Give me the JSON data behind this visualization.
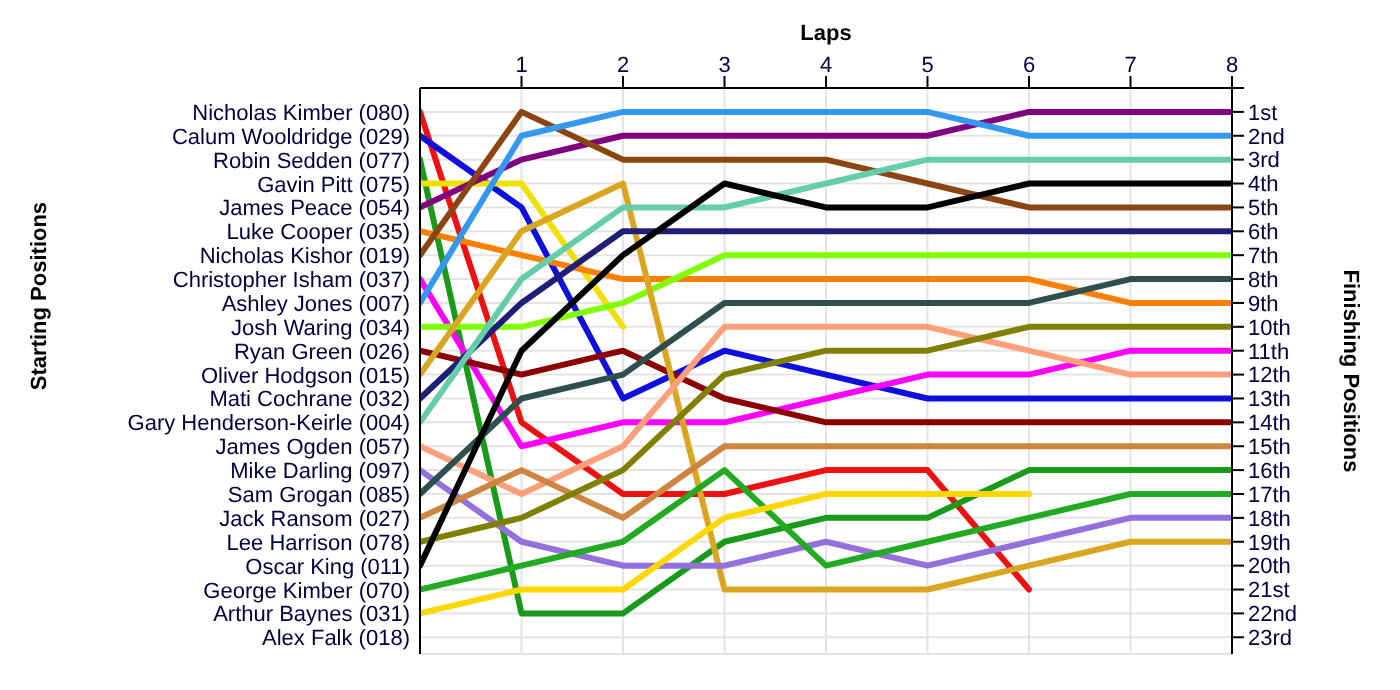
{
  "chart_data": {
    "type": "line",
    "xlabel": "Laps",
    "legend_title": "Starting Positions",
    "ylabel": "Finishing Positions",
    "x": [
      0,
      1,
      2,
      3,
      4,
      5,
      6,
      7,
      8
    ],
    "xlim": [
      0,
      8
    ],
    "xticks": [
      1,
      2,
      3,
      4,
      5,
      6,
      7,
      8
    ],
    "ylim": [
      23.7,
      0
    ],
    "grid": true,
    "line_style": "solid",
    "yticks": [
      {
        "value": 0,
        "label": null
      },
      {
        "value": 1,
        "label": "1st"
      },
      {
        "value": 2,
        "label": "2nd"
      },
      {
        "value": 3,
        "label": "3rd"
      },
      {
        "value": 4,
        "label": "4th"
      },
      {
        "value": 5,
        "label": "5th"
      },
      {
        "value": 6,
        "label": "6th"
      },
      {
        "value": 7,
        "label": "7th"
      },
      {
        "value": 8,
        "label": "8th"
      },
      {
        "value": 9,
        "label": "9th"
      },
      {
        "value": 10,
        "label": "10th"
      },
      {
        "value": 11,
        "label": "11th"
      },
      {
        "value": 12,
        "label": "12th"
      },
      {
        "value": 13,
        "label": "13th"
      },
      {
        "value": 14,
        "label": "14th"
      },
      {
        "value": 15,
        "label": "15th"
      },
      {
        "value": 16,
        "label": "16th"
      },
      {
        "value": 17,
        "label": "17th"
      },
      {
        "value": 18,
        "label": "18th"
      },
      {
        "value": 19,
        "label": "19th"
      },
      {
        "value": 20,
        "label": "20th"
      },
      {
        "value": 21,
        "label": "21st"
      },
      {
        "value": 22,
        "label": "22nd"
      },
      {
        "value": 23,
        "label": "23rd"
      }
    ],
    "annotations": [
      "Alex Falk (018)"
    ],
    "series": [
      {
        "name": "Nicholas Kimber (080)",
        "color": "#ee1111",
        "values": [
          1,
          14,
          17,
          17,
          16,
          16,
          21,
          null,
          null
        ]
      },
      {
        "name": "Calum Wooldridge (029)",
        "color": "#1010dd",
        "values": [
          2,
          5,
          13,
          11,
          12,
          13,
          13,
          13,
          13
        ]
      },
      {
        "name": "Robin Sedden (077)",
        "color": "#1a9a1a",
        "values": [
          3,
          22,
          22,
          19,
          18,
          18,
          16,
          16,
          16
        ]
      },
      {
        "name": "Gavin Pitt (075)",
        "color": "#f0e000",
        "values": [
          4,
          4,
          10,
          null,
          null,
          null,
          null,
          null,
          null
        ]
      },
      {
        "name": "James Peace (054)",
        "color": "#800080",
        "values": [
          5,
          3,
          2,
          2,
          2,
          2,
          1,
          1,
          1
        ]
      },
      {
        "name": "Luke Cooper (035)",
        "color": "#ff8000",
        "values": [
          6,
          7,
          8,
          8,
          8,
          8,
          8,
          9,
          9
        ]
      },
      {
        "name": "Nicholas Kishor (019)",
        "color": "#8b4513",
        "values": [
          7,
          1,
          3,
          3,
          3,
          4,
          5,
          5,
          5
        ]
      },
      {
        "name": "Christopher Isham (037)",
        "color": "#ff00ff",
        "values": [
          8,
          15,
          14,
          14,
          13,
          12,
          12,
          11,
          11
        ]
      },
      {
        "name": "Ashley Jones (007)",
        "color": "#3399ee",
        "values": [
          9,
          2,
          1,
          1,
          1,
          1,
          2,
          2,
          2
        ]
      },
      {
        "name": "Josh Waring (034)",
        "color": "#80ff00",
        "values": [
          10,
          10,
          9,
          7,
          7,
          7,
          7,
          7,
          7
        ]
      },
      {
        "name": "Ryan Green (026)",
        "color": "#8b0000",
        "values": [
          11,
          12,
          11,
          13,
          14,
          14,
          14,
          14,
          14
        ]
      },
      {
        "name": "Oliver Hodgson (015)",
        "color": "#daa520",
        "values": [
          12,
          6,
          4,
          21,
          21,
          21,
          20,
          19,
          19
        ]
      },
      {
        "name": "Mati Cochrane (032)",
        "color": "#1f1f7a",
        "values": [
          13,
          9,
          6,
          6,
          6,
          6,
          6,
          6,
          6
        ]
      },
      {
        "name": "Gary Henderson-Keirle (004)",
        "color": "#66cdaa",
        "values": [
          14,
          8,
          5,
          5,
          4,
          3,
          3,
          3,
          3
        ]
      },
      {
        "name": "James Ogden (057)",
        "color": "#ffa07a",
        "values": [
          15,
          17,
          15,
          10,
          10,
          10,
          11,
          12,
          12
        ]
      },
      {
        "name": "Mike Darling (097)",
        "color": "#9370db",
        "values": [
          16,
          19,
          20,
          20,
          19,
          20,
          19,
          18,
          18
        ]
      },
      {
        "name": "Sam Grogan (085)",
        "color": "#2f4f4f",
        "values": [
          17,
          13,
          12,
          9,
          9,
          9,
          9,
          8,
          8
        ]
      },
      {
        "name": "Jack Ransom (027)",
        "color": "#cd853f",
        "values": [
          18,
          16,
          18,
          15,
          15,
          15,
          15,
          15,
          15
        ]
      },
      {
        "name": "Lee Harrison (078)",
        "color": "#808000",
        "values": [
          19,
          18,
          16,
          12,
          11,
          11,
          10,
          10,
          10
        ]
      },
      {
        "name": "Oscar King (011)",
        "color": "#000000",
        "values": [
          20,
          11,
          7,
          4,
          5,
          5,
          4,
          4,
          4
        ]
      },
      {
        "name": "George Kimber (070)",
        "color": "#22aa22",
        "values": [
          21,
          20,
          19,
          16,
          20,
          19,
          18,
          17,
          17
        ]
      },
      {
        "name": "Arthur Baynes (031)",
        "color": "#ffd700",
        "values": [
          22,
          21,
          21,
          18,
          17,
          17,
          17,
          null,
          null
        ]
      }
    ]
  }
}
